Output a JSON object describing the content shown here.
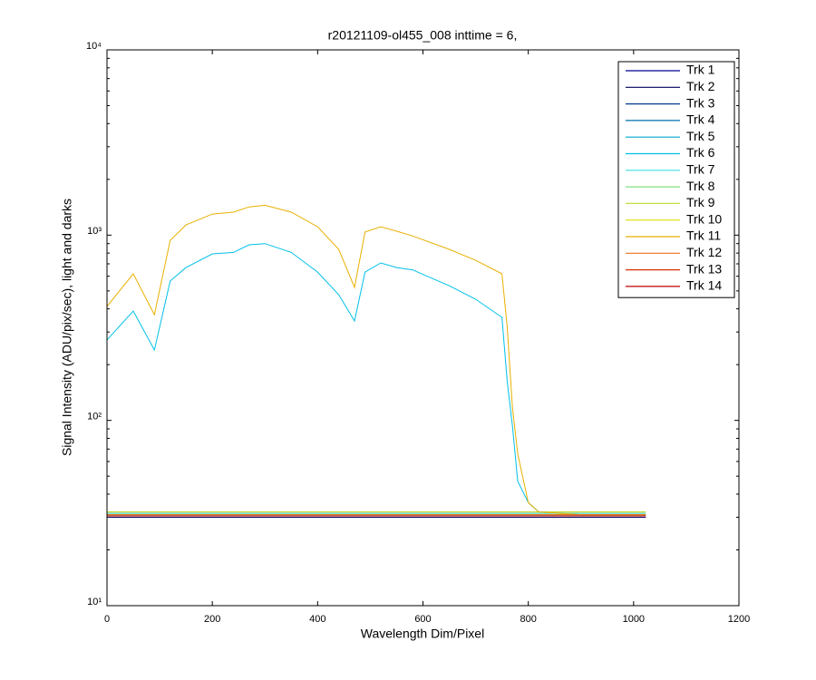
{
  "chart_data": {
    "type": "line",
    "title": "r20121109-ol455_008 inttime = 6,",
    "xlabel": "Wavelength Dim/Pixel",
    "ylabel": "Signal Intensity (ADU/pix/sec), light and darks",
    "yscale": "log",
    "grid": false,
    "legend": "upper right",
    "xlim": [
      0,
      1200
    ],
    "xticks": [
      0,
      200,
      400,
      600,
      800,
      1000,
      1200
    ],
    "ylim": [
      10,
      10000
    ],
    "yticks": [
      {
        "value": 10,
        "label": "10¹"
      },
      {
        "value": 100,
        "label": "10²"
      },
      {
        "value": 1000,
        "label": "10³"
      },
      {
        "value": 10000,
        "label": "10⁴"
      }
    ],
    "x": [
      0,
      50,
      90,
      120,
      150,
      200,
      240,
      270,
      300,
      350,
      400,
      440,
      470,
      490,
      520,
      550,
      580,
      650,
      700,
      750,
      760,
      770,
      780,
      800,
      820,
      900,
      1023
    ],
    "series": [
      {
        "name": "Trk 1",
        "color": "#000090",
        "values": [
          30,
          30,
          30,
          30,
          30,
          30,
          30,
          30,
          30,
          30,
          30,
          30,
          30,
          30,
          30,
          30,
          30,
          30,
          30,
          30,
          30,
          30,
          30,
          30,
          30,
          30,
          30
        ]
      },
      {
        "name": "Trk 2",
        "color": "#00005a",
        "values": [
          30,
          30,
          30,
          30,
          30,
          30,
          30,
          30,
          30,
          30,
          30,
          30,
          30,
          30,
          30,
          30,
          30,
          30,
          30,
          30,
          30,
          30,
          30,
          30,
          30,
          30,
          30
        ]
      },
      {
        "name": "Trk 3",
        "color": "#003a90",
        "values": [
          31,
          31,
          31,
          31,
          31,
          31,
          31,
          31,
          31,
          31,
          31,
          31,
          31,
          31,
          31,
          31,
          31,
          31,
          31,
          31,
          31,
          31,
          31,
          31,
          31,
          31,
          31
        ]
      },
      {
        "name": "Trk 4",
        "color": "#0070a8",
        "values": [
          31,
          31,
          31,
          31,
          31,
          31,
          31,
          31,
          31,
          31,
          31,
          31,
          31,
          31,
          31,
          31,
          31,
          31,
          31,
          31,
          31,
          31,
          31,
          31,
          31,
          31,
          31
        ]
      },
      {
        "name": "Trk 5",
        "color": "#00a8d0",
        "values": [
          32,
          32,
          32,
          32,
          32,
          32,
          32,
          32,
          32,
          32,
          32,
          32,
          32,
          32,
          32,
          32,
          32,
          32,
          32,
          32,
          32,
          32,
          32,
          32,
          32,
          32,
          32
        ]
      },
      {
        "name": "Trk 6",
        "color": "#00c0e8",
        "values": [
          272,
          389,
          240,
          565,
          668,
          792,
          807,
          887,
          900,
          807,
          632,
          477,
          344,
          632,
          708,
          668,
          650,
          533,
          451,
          360,
          163,
          93,
          47,
          36,
          32,
          31,
          31
        ]
      },
      {
        "name": "Trk 7",
        "color": "#40e0e0",
        "values": [
          31.5,
          31.5,
          31.5,
          31.5,
          31.5,
          31.5,
          31.5,
          31.5,
          31.5,
          31.5,
          31.5,
          31.5,
          31.5,
          31.5,
          31.5,
          31.5,
          31.5,
          31.5,
          31.5,
          31.5,
          31.5,
          31.5,
          31.5,
          31.5,
          31.5,
          31.5,
          31.5
        ]
      },
      {
        "name": "Trk 8",
        "color": "#80e080",
        "values": [
          31,
          31,
          31,
          31,
          31,
          31,
          31,
          31,
          31,
          31,
          31,
          31,
          31,
          31,
          31,
          31,
          31,
          31,
          31,
          31,
          31,
          31,
          31,
          31,
          31,
          31,
          31
        ]
      },
      {
        "name": "Trk 9",
        "color": "#c0e040",
        "values": [
          31,
          31,
          31,
          31,
          31,
          31,
          31,
          31,
          31,
          31,
          31,
          31,
          31,
          31,
          31,
          31,
          31,
          31,
          31,
          31,
          31,
          31,
          31,
          31,
          31,
          31,
          31
        ]
      },
      {
        "name": "Trk 10",
        "color": "#e0e000",
        "values": [
          32,
          32,
          32,
          32,
          32,
          32,
          32,
          32,
          32,
          32,
          32,
          32,
          32,
          32,
          32,
          32,
          32,
          32,
          32,
          32,
          32,
          32,
          32,
          32,
          32,
          32,
          32
        ]
      },
      {
        "name": "Trk 11",
        "color": "#e8b000",
        "values": [
          412,
          618,
          372,
          937,
          1135,
          1300,
          1330,
          1420,
          1450,
          1330,
          1110,
          838,
          522,
          1040,
          1110,
          1050,
          990,
          838,
          731,
          618,
          321,
          117,
          66,
          36,
          32,
          31,
          31
        ]
      },
      {
        "name": "Trk 12",
        "color": "#f07020",
        "values": [
          31,
          31,
          31,
          31,
          31,
          31,
          31,
          31,
          31,
          31,
          31,
          31,
          31,
          31,
          31,
          31,
          31,
          31,
          31,
          31,
          31,
          31,
          31,
          31,
          31,
          31,
          31
        ]
      },
      {
        "name": "Trk 13",
        "color": "#d83000",
        "values": [
          30.5,
          30.5,
          30.5,
          30.5,
          30.5,
          30.5,
          30.5,
          30.5,
          30.5,
          30.5,
          30.5,
          30.5,
          30.5,
          30.5,
          30.5,
          30.5,
          30.5,
          30.5,
          30.5,
          30.5,
          30.5,
          30.5,
          30.5,
          30.5,
          30.5,
          30.5,
          30.5
        ]
      },
      {
        "name": "Trk 14",
        "color": "#c00000",
        "values": [
          30.5,
          30.5,
          30.5,
          30.5,
          30.5,
          30.5,
          30.5,
          30.5,
          30.5,
          30.5,
          30.5,
          30.5,
          30.5,
          30.5,
          30.5,
          30.5,
          30.5,
          30.5,
          30.5,
          30.5,
          30.5,
          30.5,
          30.5,
          30.5,
          30.5,
          30.5,
          30.5
        ]
      }
    ]
  }
}
